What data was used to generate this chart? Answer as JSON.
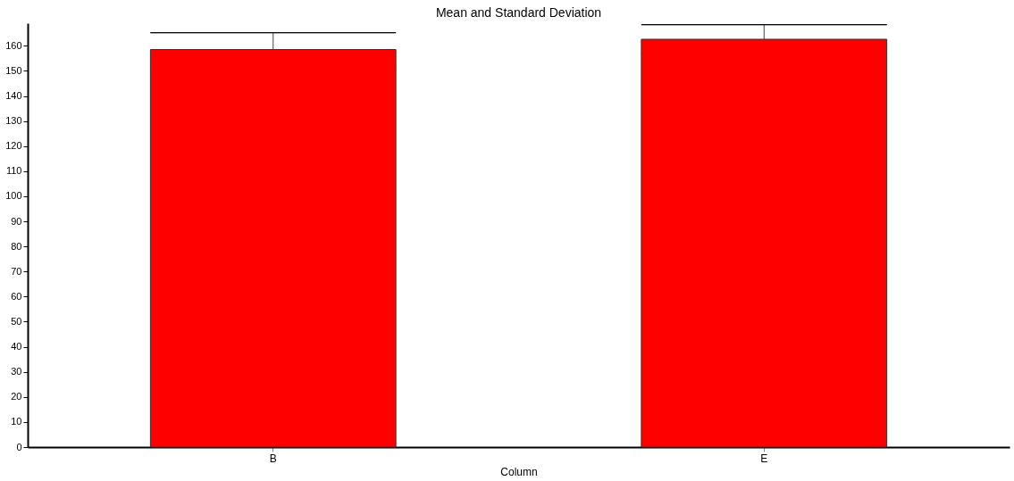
{
  "chart_data": {
    "type": "bar",
    "title": "Mean and Standard Deviation",
    "xlabel": "Column",
    "categories": [
      "B",
      "E"
    ],
    "values": [
      158.5,
      162.6
    ],
    "errors": [
      6.7,
      5.8
    ],
    "color": "#ff0000",
    "ylim": [
      0,
      169
    ],
    "yticks": [
      0,
      10,
      20,
      30,
      40,
      50,
      60,
      70,
      80,
      90,
      100,
      110,
      120,
      130,
      140,
      150,
      160
    ],
    "grid": false
  }
}
